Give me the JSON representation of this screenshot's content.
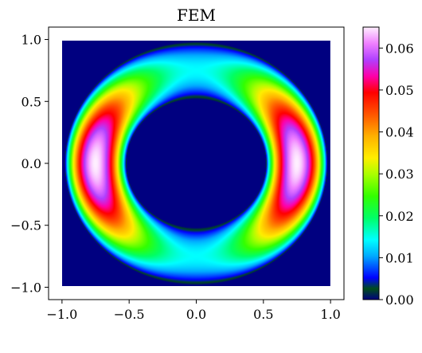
{
  "chart_data": {
    "type": "heatmap",
    "title": "FEM",
    "xlabel": "",
    "ylabel": "",
    "xlim": [
      -1.1,
      1.1
    ],
    "ylim": [
      -1.1,
      1.1
    ],
    "domain": [
      -1.0,
      1.0
    ],
    "grid": false,
    "xticks": [
      -1.0,
      -0.5,
      0.0,
      0.5,
      1.0
    ],
    "xtick_labels": [
      "−1.0",
      "−0.5",
      "0.0",
      "0.5",
      "1.0"
    ],
    "yticks": [
      1.0,
      0.5,
      0.0,
      -0.5,
      -1.0
    ],
    "ytick_labels": [
      "1.0",
      "0.5",
      "0.0",
      "−0.5",
      "−1.0"
    ],
    "field": {
      "shape": "annulus",
      "inner_radius": 0.52,
      "outer_radius": 0.98,
      "peak_value": 0.065,
      "peak_locations": [
        [
          -0.72,
          0.0
        ],
        [
          0.72,
          0.0
        ]
      ],
      "background_value": 0.0
    },
    "colorbar": {
      "range": [
        0.0,
        0.065
      ],
      "ticks": [
        0.0,
        0.01,
        0.02,
        0.03,
        0.04,
        0.05,
        0.06
      ],
      "tick_labels": [
        "0.00",
        "0.01",
        "0.02",
        "0.03",
        "0.04",
        "0.05",
        "0.06"
      ],
      "colormap": "gist_ncar",
      "colormap_stops": [
        {
          "v": 0.0,
          "c": "#000080"
        },
        {
          "v": 0.04,
          "c": "#004d1a"
        },
        {
          "v": 0.08,
          "c": "#0000ff"
        },
        {
          "v": 0.16,
          "c": "#00aaff"
        },
        {
          "v": 0.22,
          "c": "#00ffff"
        },
        {
          "v": 0.3,
          "c": "#00ff66"
        },
        {
          "v": 0.38,
          "c": "#33ff00"
        },
        {
          "v": 0.46,
          "c": "#aaff00"
        },
        {
          "v": 0.52,
          "c": "#ffee00"
        },
        {
          "v": 0.6,
          "c": "#ffb000"
        },
        {
          "v": 0.68,
          "c": "#ff5500"
        },
        {
          "v": 0.76,
          "c": "#ff0000"
        },
        {
          "v": 0.82,
          "c": "#ff00aa"
        },
        {
          "v": 0.88,
          "c": "#b040ff"
        },
        {
          "v": 0.94,
          "c": "#f080ff"
        },
        {
          "v": 1.0,
          "c": "#fff0ff"
        }
      ]
    }
  }
}
